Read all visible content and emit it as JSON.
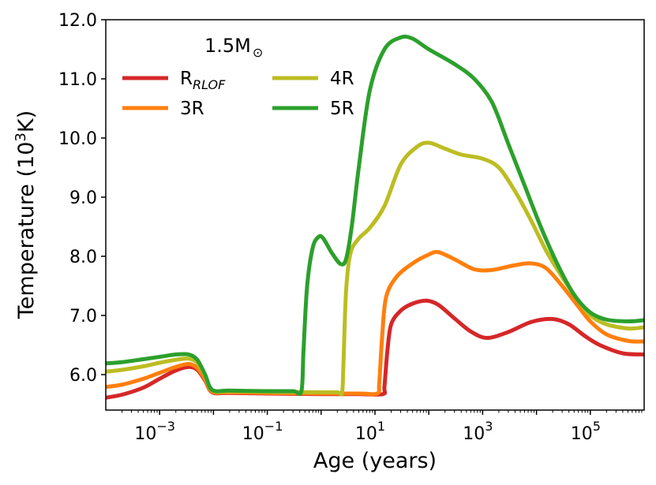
{
  "chart_data": {
    "type": "line",
    "title": "",
    "annotation": "1.5M",
    "xlabel": "Age (years)",
    "ylabel": "Temperature (10",
    "ylabel_sup": "3",
    "ylabel_tail": "K)",
    "xscale": "log",
    "xlim": [
      0.0001,
      1000000
    ],
    "ylim": [
      5.4,
      12.0
    ],
    "xticks": [
      {
        "value": 0.001,
        "base": "10",
        "exp": "−3"
      },
      {
        "value": 0.1,
        "base": "10",
        "exp": "−1"
      },
      {
        "value": 10,
        "base": "10",
        "exp": "1"
      },
      {
        "value": 1000,
        "base": "10",
        "exp": "3"
      },
      {
        "value": 100000,
        "base": "10",
        "exp": "5"
      }
    ],
    "yticks": [
      {
        "value": 6.0,
        "label": "6.0"
      },
      {
        "value": 7.0,
        "label": "7.0"
      },
      {
        "value": 8.0,
        "label": "8.0"
      },
      {
        "value": 9.0,
        "label": "9.0"
      },
      {
        "value": 10.0,
        "label": "10.0"
      },
      {
        "value": 11.0,
        "label": "11.0"
      },
      {
        "value": 12.0,
        "label": "12.0"
      }
    ],
    "grid": false,
    "legend_position": "top-left",
    "series": [
      {
        "name": "R",
        "name_sub": "RLOF",
        "color": "#d62728",
        "points": [
          [
            0.0001,
            5.61
          ],
          [
            0.0002,
            5.66
          ],
          [
            0.0005,
            5.78
          ],
          [
            0.001,
            5.93
          ],
          [
            0.002,
            6.07
          ],
          [
            0.0035,
            6.13
          ],
          [
            0.005,
            6.08
          ],
          [
            0.007,
            5.9
          ],
          [
            0.0095,
            5.7
          ],
          [
            0.02,
            5.69
          ],
          [
            0.1,
            5.68
          ],
          [
            1,
            5.67
          ],
          [
            5,
            5.67
          ],
          [
            14,
            5.67
          ],
          [
            15,
            5.8
          ],
          [
            17,
            6.4
          ],
          [
            20,
            6.85
          ],
          [
            30,
            7.08
          ],
          [
            50,
            7.2
          ],
          [
            90,
            7.25
          ],
          [
            150,
            7.18
          ],
          [
            300,
            6.95
          ],
          [
            600,
            6.73
          ],
          [
            1200,
            6.62
          ],
          [
            3000,
            6.72
          ],
          [
            8000,
            6.89
          ],
          [
            20000,
            6.94
          ],
          [
            40000,
            6.85
          ],
          [
            80000,
            6.65
          ],
          [
            150000,
            6.5
          ],
          [
            400000,
            6.36
          ],
          [
            1000000,
            6.34
          ]
        ]
      },
      {
        "name": "3R",
        "name_sub": "",
        "color": "#ff7f0e",
        "points": [
          [
            0.0001,
            5.79
          ],
          [
            0.0002,
            5.83
          ],
          [
            0.0005,
            5.93
          ],
          [
            0.001,
            6.03
          ],
          [
            0.002,
            6.13
          ],
          [
            0.0035,
            6.18
          ],
          [
            0.005,
            6.11
          ],
          [
            0.007,
            5.92
          ],
          [
            0.0095,
            5.71
          ],
          [
            0.02,
            5.7
          ],
          [
            0.1,
            5.69
          ],
          [
            1,
            5.68
          ],
          [
            5,
            5.68
          ],
          [
            11,
            5.68
          ],
          [
            12,
            5.85
          ],
          [
            13.5,
            6.6
          ],
          [
            16,
            7.3
          ],
          [
            25,
            7.65
          ],
          [
            50,
            7.88
          ],
          [
            100,
            8.03
          ],
          [
            150,
            8.07
          ],
          [
            300,
            7.95
          ],
          [
            700,
            7.78
          ],
          [
            1500,
            7.77
          ],
          [
            4000,
            7.85
          ],
          [
            8000,
            7.88
          ],
          [
            15000,
            7.8
          ],
          [
            30000,
            7.5
          ],
          [
            60000,
            7.15
          ],
          [
            100000,
            6.9
          ],
          [
            200000,
            6.68
          ],
          [
            500000,
            6.57
          ],
          [
            1000000,
            6.56
          ]
        ]
      },
      {
        "name": "4R",
        "name_sub": "",
        "color": "#bcbd22",
        "points": [
          [
            0.0001,
            6.05
          ],
          [
            0.0002,
            6.08
          ],
          [
            0.0005,
            6.14
          ],
          [
            0.001,
            6.2
          ],
          [
            0.002,
            6.25
          ],
          [
            0.0035,
            6.27
          ],
          [
            0.005,
            6.2
          ],
          [
            0.007,
            5.98
          ],
          [
            0.0095,
            5.73
          ],
          [
            0.02,
            5.72
          ],
          [
            0.1,
            5.71
          ],
          [
            1,
            5.7
          ],
          [
            2,
            5.7
          ],
          [
            2.45,
            5.7
          ],
          [
            2.6,
            6.2
          ],
          [
            2.9,
            7.4
          ],
          [
            3.5,
            8.05
          ],
          [
            5,
            8.3
          ],
          [
            8,
            8.48
          ],
          [
            15,
            8.85
          ],
          [
            30,
            9.55
          ],
          [
            60,
            9.85
          ],
          [
            100,
            9.92
          ],
          [
            200,
            9.82
          ],
          [
            400,
            9.72
          ],
          [
            1000,
            9.65
          ],
          [
            2000,
            9.5
          ],
          [
            4000,
            9.1
          ],
          [
            8000,
            8.6
          ],
          [
            15000,
            8.1
          ],
          [
            30000,
            7.65
          ],
          [
            60000,
            7.25
          ],
          [
            100000,
            7.0
          ],
          [
            200000,
            6.85
          ],
          [
            500000,
            6.78
          ],
          [
            1000000,
            6.8
          ]
        ]
      },
      {
        "name": "5R",
        "name_sub": "",
        "color": "#2ca02c",
        "points": [
          [
            0.0001,
            6.19
          ],
          [
            0.0002,
            6.21
          ],
          [
            0.0005,
            6.26
          ],
          [
            0.001,
            6.3
          ],
          [
            0.002,
            6.34
          ],
          [
            0.0035,
            6.34
          ],
          [
            0.005,
            6.25
          ],
          [
            0.007,
            6.0
          ],
          [
            0.0095,
            5.74
          ],
          [
            0.02,
            5.73
          ],
          [
            0.1,
            5.72
          ],
          [
            0.3,
            5.72
          ],
          [
            0.43,
            5.72
          ],
          [
            0.47,
            6.4
          ],
          [
            0.55,
            7.5
          ],
          [
            0.7,
            8.15
          ],
          [
            0.9,
            8.33
          ],
          [
            1.1,
            8.3
          ],
          [
            1.6,
            8.05
          ],
          [
            2.3,
            7.87
          ],
          [
            2.9,
            7.95
          ],
          [
            3.7,
            8.5
          ],
          [
            5,
            9.5
          ],
          [
            8,
            10.8
          ],
          [
            15,
            11.5
          ],
          [
            30,
            11.7
          ],
          [
            50,
            11.68
          ],
          [
            100,
            11.5
          ],
          [
            300,
            11.25
          ],
          [
            700,
            11.0
          ],
          [
            1500,
            10.6
          ],
          [
            3000,
            9.9
          ],
          [
            6000,
            9.2
          ],
          [
            12000,
            8.5
          ],
          [
            25000,
            7.85
          ],
          [
            50000,
            7.35
          ],
          [
            100000,
            7.05
          ],
          [
            200000,
            6.93
          ],
          [
            500000,
            6.9
          ],
          [
            1000000,
            6.92
          ]
        ]
      }
    ]
  }
}
